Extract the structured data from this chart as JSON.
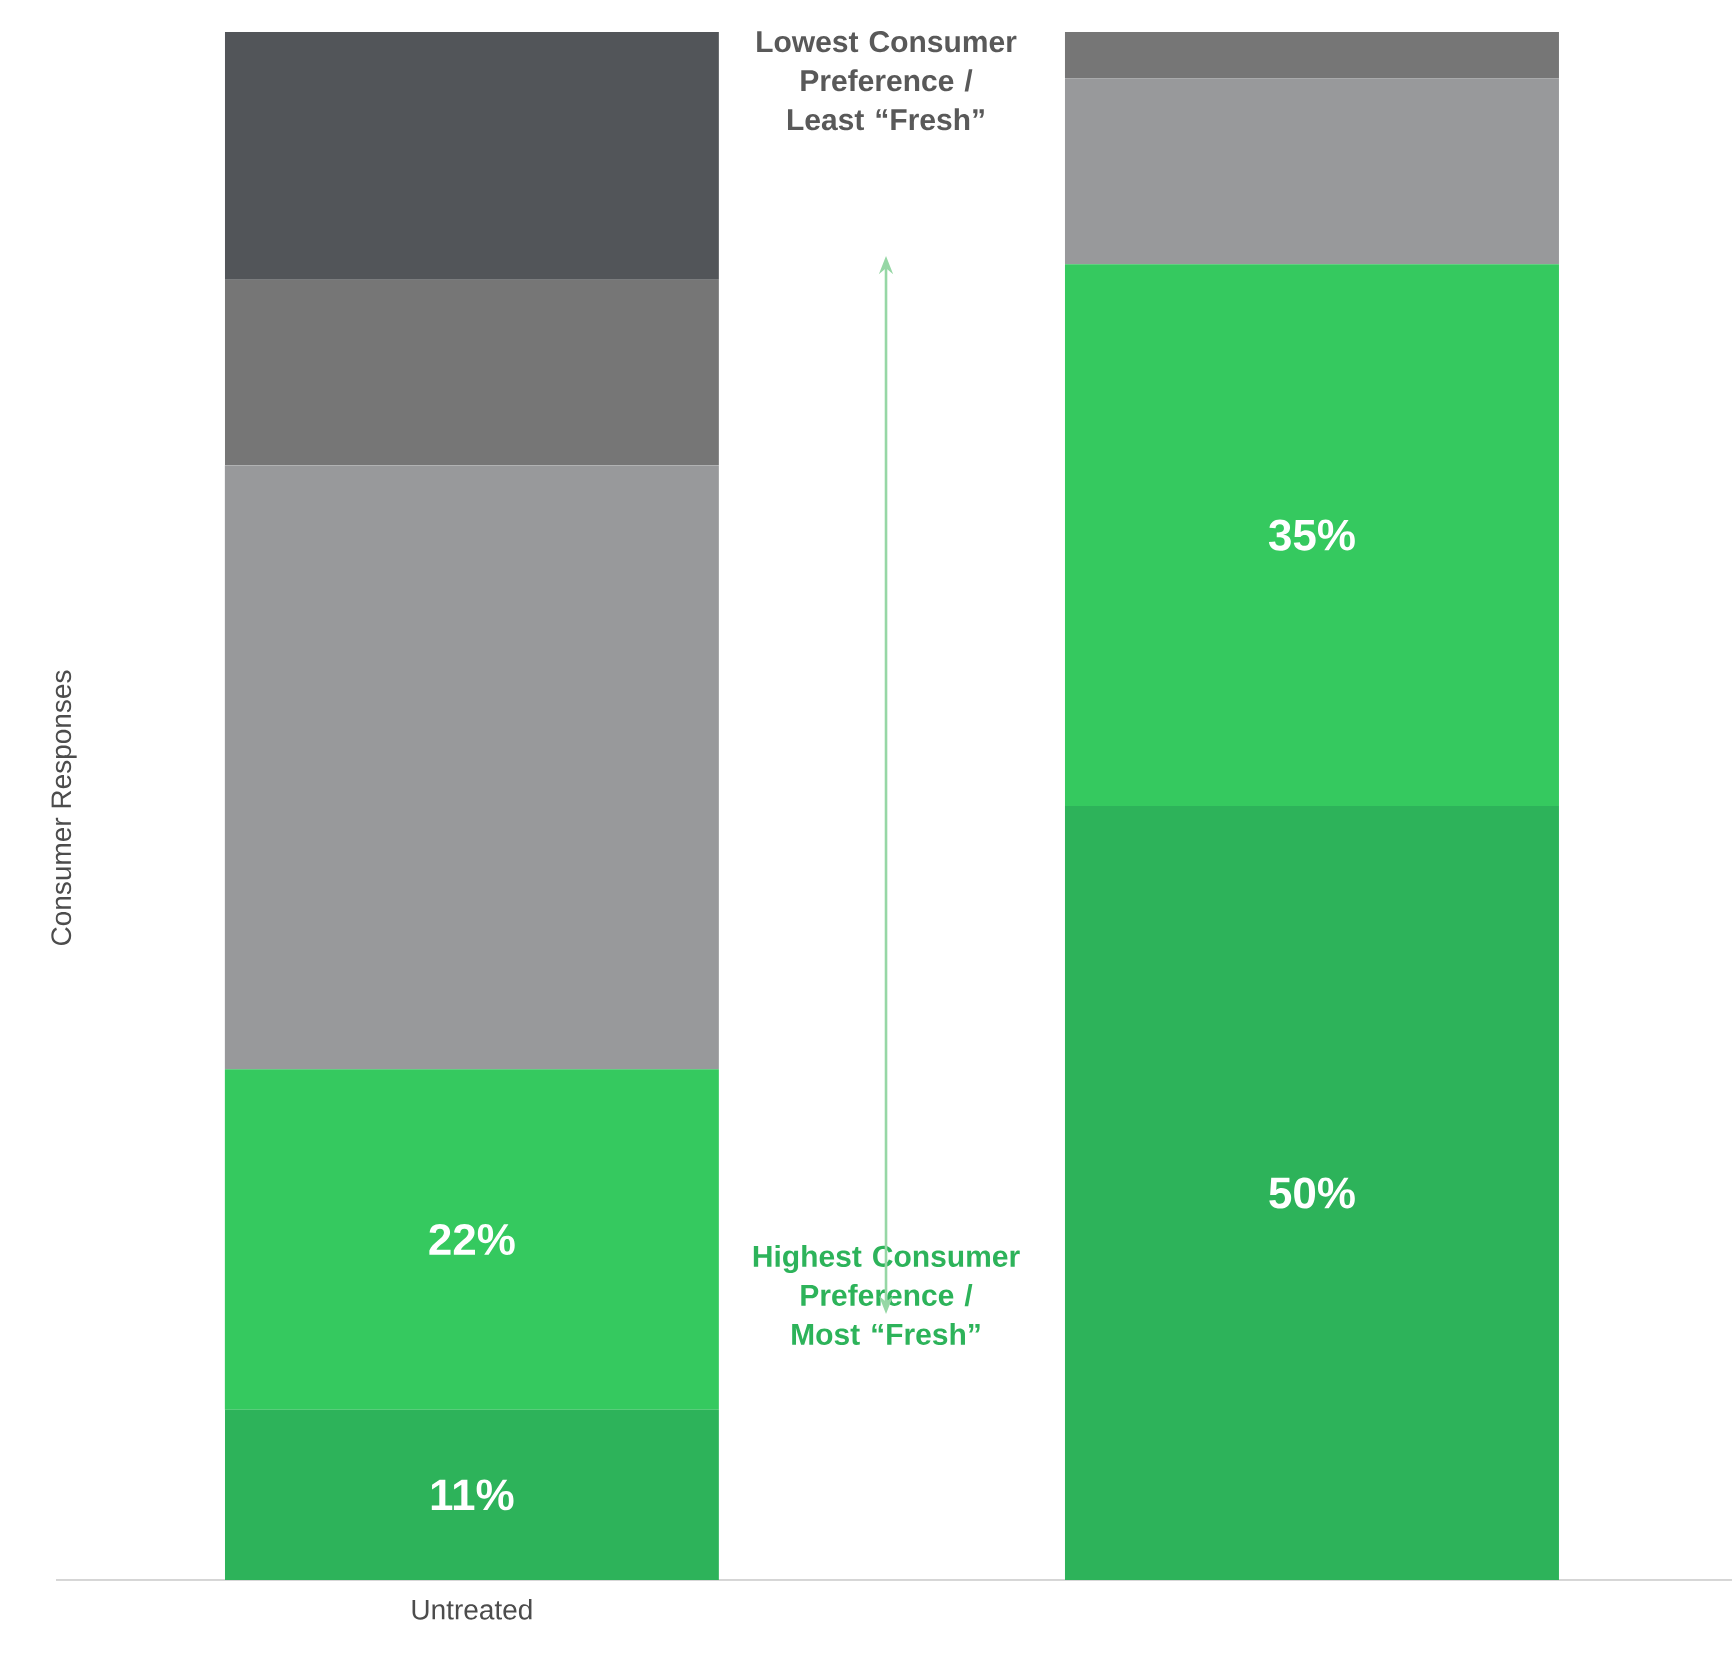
{
  "chart_data": {
    "type": "bar",
    "stacked": true,
    "ylabel": "Consumer Responses",
    "categories": [
      "Untreated",
      null
    ],
    "series": [
      {
        "color": "#2db35a",
        "values": [
          11,
          50
        ],
        "value_labels": [
          "11%",
          "50%"
        ]
      },
      {
        "color": "#35c95f",
        "values": [
          22,
          35
        ],
        "value_labels": [
          "22%",
          "35%"
        ]
      },
      {
        "color": "#98999b",
        "values": [
          39,
          12
        ],
        "value_labels": [
          null,
          null
        ]
      },
      {
        "color": "#767676",
        "values": [
          12,
          3
        ],
        "value_labels": [
          null,
          null
        ]
      },
      {
        "color": "#525559",
        "values": [
          16,
          0
        ],
        "value_labels": [
          null,
          null
        ]
      }
    ],
    "annotations": [
      "Lowest Consumer Preference / Least “Fresh”",
      "Highest Consumer Preference / Most “Fresh”"
    ]
  }
}
